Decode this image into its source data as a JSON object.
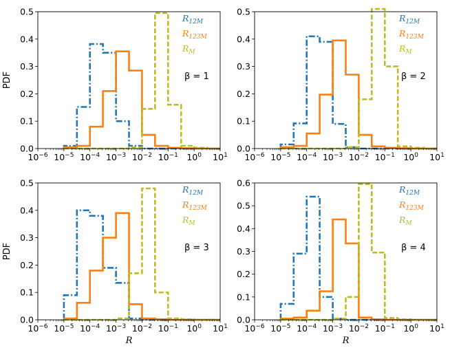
{
  "chart_data": [
    {
      "type": "step-histogram",
      "xscale": "log",
      "xlim": [
        1e-06,
        10
      ],
      "ylim": [
        0,
        0.5
      ],
      "yticks": [
        "0.0",
        "0.1",
        "0.2",
        "0.3",
        "0.4",
        "0.5"
      ],
      "ylabel": "PDF",
      "xlabel": "",
      "annotation": "β = 1",
      "legend_position": "top-right",
      "bin_edges": [
        1e-05,
        3.16e-05,
        0.0001,
        0.000316,
        0.001,
        0.00316,
        0.01,
        0.0316,
        0.1,
        0.316,
        1,
        3.16,
        10
      ],
      "series": [
        {
          "name": "R_12M",
          "values": [
            0.01,
            0.152,
            0.382,
            0.35,
            0.1,
            0.01,
            0,
            0,
            0,
            0,
            0,
            0
          ]
        },
        {
          "name": "R_123M",
          "values": [
            0.005,
            0.01,
            0.08,
            0.21,
            0.355,
            0.285,
            0.05,
            0.01,
            0.003,
            0.001,
            0,
            0
          ]
        },
        {
          "name": "R_M",
          "values": [
            0,
            0,
            0,
            0,
            0,
            0.005,
            0.145,
            0.495,
            0.16,
            0.01,
            0.003,
            0
          ]
        }
      ]
    },
    {
      "type": "step-histogram",
      "xscale": "log",
      "xlim": [
        1e-06,
        10
      ],
      "ylim": [
        0,
        0.5
      ],
      "yticks": [
        "0.0",
        "0.1",
        "0.2",
        "0.3",
        "0.4",
        "0.5"
      ],
      "ylabel": "",
      "xlabel": "",
      "annotation": "β = 2",
      "legend_position": "top-right",
      "bin_edges": [
        1e-05,
        3.16e-05,
        0.0001,
        0.000316,
        0.001,
        0.00316,
        0.01,
        0.0316,
        0.1,
        0.316,
        1,
        3.16,
        10
      ],
      "series": [
        {
          "name": "R_12M",
          "values": [
            0.015,
            0.092,
            0.41,
            0.39,
            0.09,
            0.005,
            0,
            0,
            0,
            0,
            0,
            0
          ]
        },
        {
          "name": "R_123M",
          "values": [
            0.005,
            0.01,
            0.055,
            0.197,
            0.395,
            0.27,
            0.05,
            0.008,
            0.003,
            0.001,
            0,
            0
          ]
        },
        {
          "name": "R_M",
          "values": [
            0,
            0,
            0,
            0,
            0,
            0.005,
            0.18,
            0.51,
            0.3,
            0.008,
            0.003,
            0
          ]
        }
      ]
    },
    {
      "type": "step-histogram",
      "xscale": "log",
      "xlim": [
        1e-06,
        10
      ],
      "ylim": [
        0,
        0.5
      ],
      "yticks": [
        "0.0",
        "0.1",
        "0.2",
        "0.3",
        "0.4",
        "0.5"
      ],
      "ylabel": "PDF",
      "xlabel": "R",
      "annotation": "β = 3",
      "legend_position": "top-right",
      "bin_edges": [
        1e-05,
        3.16e-05,
        0.0001,
        0.000316,
        0.001,
        0.00316,
        0.01,
        0.0316,
        0.1,
        0.316,
        1,
        3.16,
        10
      ],
      "series": [
        {
          "name": "R_12M",
          "values": [
            0.09,
            0.4,
            0.38,
            0.19,
            0.135,
            0.005,
            0,
            0,
            0,
            0,
            0,
            0
          ]
        },
        {
          "name": "R_123M",
          "values": [
            0.005,
            0.062,
            0.18,
            0.3,
            0.39,
            0.057,
            0.005,
            0.002,
            0,
            0,
            0,
            0
          ]
        },
        {
          "name": "R_M",
          "values": [
            0,
            0,
            0,
            0,
            0.005,
            0.17,
            0.48,
            0.1,
            0.005,
            0.002,
            0,
            0
          ]
        }
      ]
    },
    {
      "type": "step-histogram",
      "xscale": "log",
      "xlim": [
        1e-06,
        10
      ],
      "ylim": [
        0,
        0.6
      ],
      "yticks": [
        "0.0",
        "0.1",
        "0.2",
        "0.3",
        "0.4",
        "0.5",
        "0.6"
      ],
      "ylabel": "",
      "xlabel": "R",
      "annotation": "β = 4",
      "legend_position": "top-right",
      "bin_edges": [
        1e-05,
        3.16e-05,
        0.0001,
        0.000316,
        0.001,
        0.00316,
        0.01,
        0.0316,
        0.1,
        0.316,
        1,
        3.16,
        10
      ],
      "series": [
        {
          "name": "R_12M",
          "values": [
            0.07,
            0.29,
            0.54,
            0.1,
            0.005,
            0,
            0,
            0,
            0,
            0,
            0,
            0
          ]
        },
        {
          "name": "R_123M",
          "values": [
            0.005,
            0.01,
            0.04,
            0.125,
            0.44,
            0.335,
            0.01,
            0.002,
            0,
            0,
            0,
            0
          ]
        },
        {
          "name": "R_M",
          "values": [
            0,
            0,
            0,
            0,
            0.005,
            0.1,
            0.595,
            0.295,
            0.008,
            0.002,
            0,
            0
          ]
        }
      ]
    }
  ],
  "colors": {
    "R_12M": "#1f77b4",
    "R_123M": "#ff7f0e",
    "R_M": "#bcbd22"
  },
  "legend": [
    {
      "key": "R_12M",
      "base": "R",
      "sub": "12M"
    },
    {
      "key": "R_123M",
      "base": "R",
      "sub": "123M"
    },
    {
      "key": "R_M",
      "base": "R",
      "sub": "M"
    }
  ],
  "xtick_labels": [
    {
      "base": "10",
      "exp": "-6"
    },
    {
      "base": "10",
      "exp": "-5"
    },
    {
      "base": "10",
      "exp": "-4"
    },
    {
      "base": "10",
      "exp": "-3"
    },
    {
      "base": "10",
      "exp": "-2"
    },
    {
      "base": "10",
      "exp": "-1"
    },
    {
      "base": "10",
      "exp": "0"
    },
    {
      "base": "10",
      "exp": "1"
    }
  ]
}
